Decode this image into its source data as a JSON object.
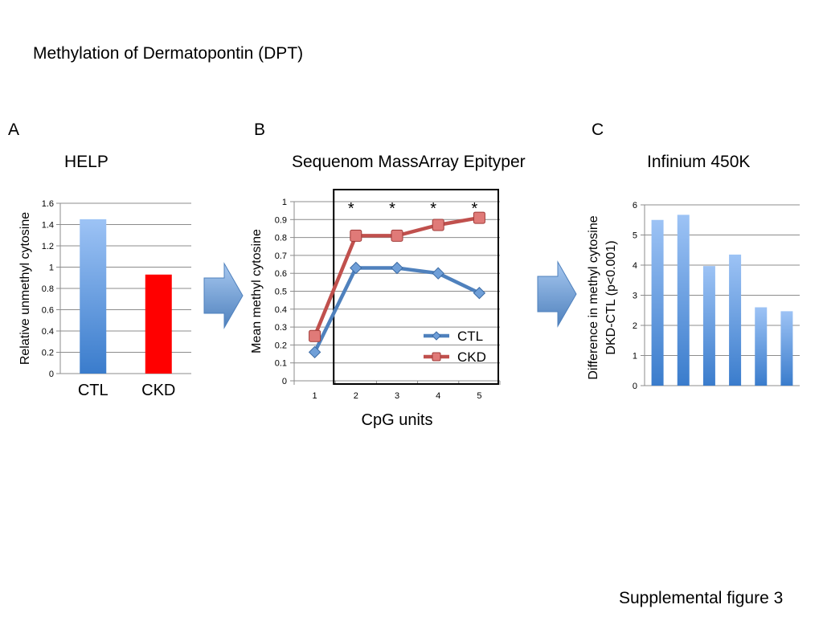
{
  "page_title": "Methylation of Dermatopontin (DPT)",
  "footer": "Supplemental figure 3",
  "panels": {
    "a": {
      "letter": "A",
      "title": "HELP"
    },
    "b": {
      "letter": "B",
      "title": "Sequenom MassArray Epityper"
    },
    "c": {
      "letter": "C",
      "title": "Infinium 450K"
    }
  },
  "arrows": [
    {
      "name": "arrow-a-to-b",
      "color": "#4f81bd"
    },
    {
      "name": "arrow-b-to-c",
      "color": "#4f81bd"
    }
  ],
  "chart_data": [
    {
      "type": "bar",
      "ylabel": "Relative unmethyl cytosine",
      "ylim": [
        0,
        1.6
      ],
      "yticks": [
        "0",
        "0.2",
        "0.4",
        "0.6",
        "0.8",
        "1",
        "1.2",
        "1.4",
        "1.6"
      ],
      "categories": [
        "CTL",
        "CKD"
      ],
      "values": [
        1.45,
        0.93
      ],
      "colors": [
        "gradient-blue",
        "#ff0000"
      ],
      "grid": true
    },
    {
      "type": "line",
      "xlabel": "CpG units",
      "ylabel": "Mean methyl cytosine",
      "ylim": [
        0,
        1
      ],
      "yticks": [
        "0",
        "0.1",
        "0.2",
        "0.3",
        "0.4",
        "0.5",
        "0.6",
        "0.7",
        "0.8",
        "0.9",
        "1"
      ],
      "x": [
        "1",
        "2",
        "3",
        "4",
        "5"
      ],
      "series": [
        {
          "name": "CTL",
          "values": [
            0.16,
            0.63,
            0.63,
            0.6,
            0.49
          ],
          "color": "#4f81bd",
          "marker": "diamond"
        },
        {
          "name": "CKD",
          "values": [
            0.25,
            0.81,
            0.81,
            0.87,
            0.91
          ],
          "color": "#c0504d",
          "marker": "square"
        }
      ],
      "significance": [
        {
          "x": 2,
          "label": "*"
        },
        {
          "x": 3,
          "label": "*"
        },
        {
          "x": 4,
          "label": "*"
        },
        {
          "x": 5,
          "label": "*"
        }
      ],
      "highlight_box_x_range": [
        2,
        5
      ],
      "legend": "bottom-right",
      "grid": true
    },
    {
      "type": "bar",
      "ylabel": "Difference in methyl cytosine DKD-CTL (p<0.001)",
      "ylabel_lines": [
        "Difference in methyl cytosine",
        "DKD-CTL (p<0.001)"
      ],
      "ylim": [
        0,
        6
      ],
      "yticks": [
        "0",
        "1",
        "2",
        "3",
        "4",
        "5",
        "6"
      ],
      "values": [
        5.5,
        5.67,
        3.97,
        4.35,
        2.6,
        2.47
      ],
      "colors": [
        "gradient-blue"
      ],
      "grid": true
    }
  ]
}
